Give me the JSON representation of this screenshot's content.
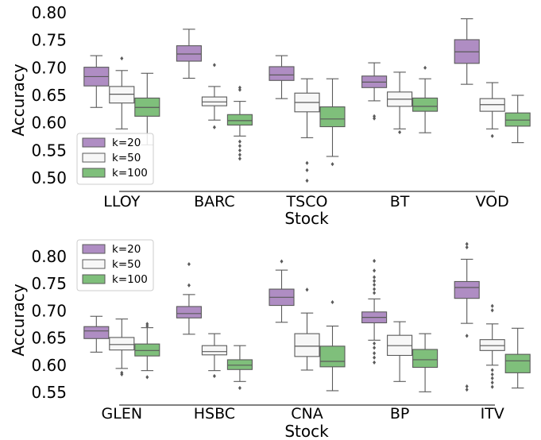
{
  "colors": {
    "k20": "#af8dc3",
    "k50": "#f7f7f7",
    "k100": "#7fbf7b",
    "edge": "#5a5a5a",
    "legend_frame": "#cccccc"
  },
  "chart_data": [
    {
      "type": "box",
      "xlabel": "Stock",
      "ylabel": "Accuracy",
      "categories": [
        "LLOY",
        "BARC",
        "TSCO",
        "BT",
        "VOD"
      ],
      "yticks": [
        "0.50",
        "0.55",
        "0.60",
        "0.65",
        "0.70",
        "0.75",
        "0.80"
      ],
      "ylim": [
        0.49,
        0.805
      ],
      "legend": {
        "position": "lower-left",
        "labels": [
          "k=20",
          "k=50",
          "k=100"
        ]
      },
      "series": [
        {
          "name": "k=20",
          "boxes": [
            {
              "whislo": 0.628,
              "q1": 0.667,
              "med": 0.684,
              "q3": 0.701,
              "whishi": 0.722,
              "fliers": []
            },
            {
              "whislo": 0.681,
              "q1": 0.712,
              "med": 0.725,
              "q3": 0.74,
              "whishi": 0.77,
              "fliers": []
            },
            {
              "whislo": 0.644,
              "q1": 0.677,
              "med": 0.687,
              "q3": 0.702,
              "whishi": 0.722,
              "fliers": []
            },
            {
              "whislo": 0.64,
              "q1": 0.664,
              "med": 0.674,
              "q3": 0.685,
              "whishi": 0.709,
              "fliers": [
                0.612,
                0.608
              ]
            },
            {
              "whislo": 0.67,
              "q1": 0.708,
              "med": 0.729,
              "q3": 0.751,
              "whishi": 0.789,
              "fliers": []
            }
          ]
        },
        {
          "name": "k=50",
          "boxes": [
            {
              "whislo": 0.589,
              "q1": 0.636,
              "med": 0.652,
              "q3": 0.666,
              "whishi": 0.695,
              "fliers": [
                0.717
              ]
            },
            {
              "whislo": 0.605,
              "q1": 0.631,
              "med": 0.638,
              "q3": 0.647,
              "whishi": 0.666,
              "fliers": [
                0.705,
                0.592
              ]
            },
            {
              "whislo": 0.573,
              "q1": 0.62,
              "med": 0.637,
              "q3": 0.654,
              "whishi": 0.68,
              "fliers": [
                0.527,
                0.514,
                0.495
              ]
            },
            {
              "whislo": 0.589,
              "q1": 0.63,
              "med": 0.643,
              "q3": 0.656,
              "whishi": 0.692,
              "fliers": [
                0.583
              ]
            },
            {
              "whislo": 0.589,
              "q1": 0.621,
              "med": 0.633,
              "q3": 0.644,
              "whishi": 0.673,
              "fliers": [
                0.576
              ]
            }
          ]
        },
        {
          "name": "k=100",
          "boxes": [
            {
              "whislo": 0.56,
              "q1": 0.612,
              "med": 0.628,
              "q3": 0.645,
              "whishi": 0.69,
              "fliers": []
            },
            {
              "whislo": 0.576,
              "q1": 0.596,
              "med": 0.604,
              "q3": 0.615,
              "whishi": 0.639,
              "fliers": [
                0.664,
                0.66,
                0.566,
                0.558,
                0.55,
                0.542,
                0.535
              ]
            },
            {
              "whislo": 0.539,
              "q1": 0.593,
              "med": 0.607,
              "q3": 0.629,
              "whishi": 0.68,
              "fliers": [
                0.525
              ]
            },
            {
              "whislo": 0.582,
              "q1": 0.621,
              "med": 0.63,
              "q3": 0.645,
              "whishi": 0.68,
              "fliers": [
                0.7
              ]
            },
            {
              "whislo": 0.564,
              "q1": 0.594,
              "med": 0.605,
              "q3": 0.618,
              "whishi": 0.65,
              "fliers": []
            }
          ]
        }
      ]
    },
    {
      "type": "box",
      "xlabel": "Stock",
      "ylabel": "Accuracy",
      "categories": [
        "GLEN",
        "HSBC",
        "CNA",
        "BP",
        "ITV"
      ],
      "yticks": [
        "0.55",
        "0.60",
        "0.65",
        "0.70",
        "0.75",
        "0.80"
      ],
      "ylim": [
        0.545,
        0.81
      ],
      "legend": {
        "position": "upper-left",
        "labels": [
          "k=20",
          "k=50",
          "k=100"
        ]
      },
      "series": [
        {
          "name": "k=20",
          "boxes": [
            {
              "whislo": 0.624,
              "q1": 0.649,
              "med": 0.663,
              "q3": 0.671,
              "whishi": 0.69,
              "fliers": []
            },
            {
              "whislo": 0.657,
              "q1": 0.687,
              "med": 0.695,
              "q3": 0.708,
              "whishi": 0.73,
              "fliers": [
                0.786,
                0.747
              ]
            },
            {
              "whislo": 0.679,
              "q1": 0.71,
              "med": 0.725,
              "q3": 0.74,
              "whishi": 0.775,
              "fliers": [
                0.791
              ]
            },
            {
              "whislo": 0.646,
              "q1": 0.678,
              "med": 0.688,
              "q3": 0.698,
              "whishi": 0.722,
              "fliers": [
                0.792,
                0.774,
                0.762,
                0.755,
                0.748,
                0.74,
                0.733,
                0.64,
                0.632,
                0.622,
                0.614,
                0.605
              ]
            },
            {
              "whislo": 0.677,
              "q1": 0.723,
              "med": 0.743,
              "q3": 0.754,
              "whishi": 0.795,
              "fliers": [
                0.823,
                0.817,
                0.654,
                0.561,
                0.555
              ]
            }
          ]
        },
        {
          "name": "k=50",
          "boxes": [
            {
              "whislo": 0.594,
              "q1": 0.628,
              "med": 0.638,
              "q3": 0.651,
              "whishi": 0.685,
              "fliers": [
                0.586,
                0.583
              ]
            },
            {
              "whislo": 0.59,
              "q1": 0.619,
              "med": 0.625,
              "q3": 0.636,
              "whishi": 0.658,
              "fliers": [
                0.58
              ]
            },
            {
              "whislo": 0.591,
              "q1": 0.616,
              "med": 0.635,
              "q3": 0.658,
              "whishi": 0.696,
              "fliers": [
                0.739
              ]
            },
            {
              "whislo": 0.57,
              "q1": 0.618,
              "med": 0.636,
              "q3": 0.655,
              "whishi": 0.68,
              "fliers": []
            },
            {
              "whislo": 0.6,
              "q1": 0.627,
              "med": 0.636,
              "q3": 0.647,
              "whishi": 0.676,
              "fliers": [
                0.709,
                0.701,
                0.591,
                0.583,
                0.576,
                0.568,
                0.56
              ]
            }
          ]
        },
        {
          "name": "k=100",
          "boxes": [
            {
              "whislo": 0.59,
              "q1": 0.617,
              "med": 0.627,
              "q3": 0.639,
              "whishi": 0.669,
              "fliers": [
                0.676,
                0.672,
                0.578
              ]
            },
            {
              "whislo": 0.57,
              "q1": 0.592,
              "med": 0.6,
              "q3": 0.61,
              "whishi": 0.636,
              "fliers": [
                0.558
              ]
            },
            {
              "whislo": 0.553,
              "q1": 0.597,
              "med": 0.607,
              "q3": 0.635,
              "whishi": 0.672,
              "fliers": [
                0.716
              ]
            },
            {
              "whislo": 0.551,
              "q1": 0.596,
              "med": 0.61,
              "q3": 0.629,
              "whishi": 0.658,
              "fliers": []
            },
            {
              "whislo": 0.558,
              "q1": 0.586,
              "med": 0.608,
              "q3": 0.62,
              "whishi": 0.668,
              "fliers": []
            }
          ]
        }
      ]
    }
  ]
}
